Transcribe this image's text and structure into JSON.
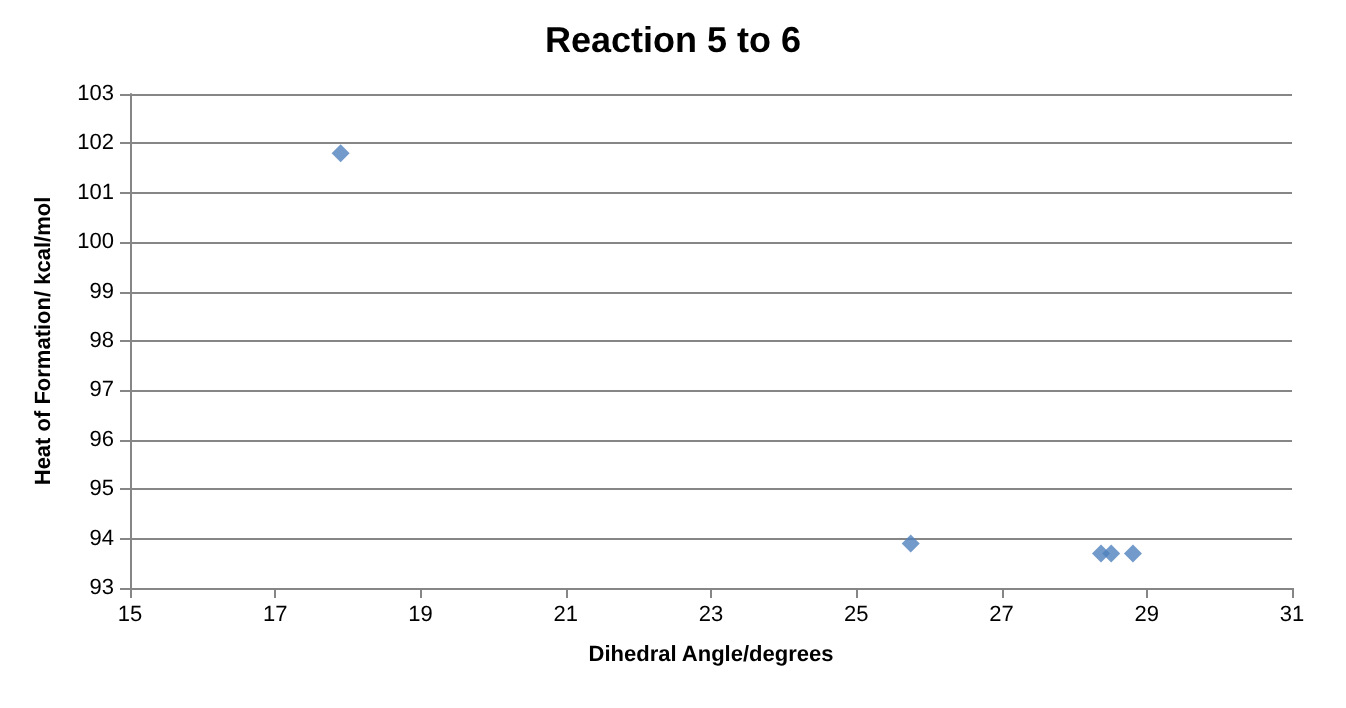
{
  "chart_data": {
    "type": "scatter",
    "title": "Reaction 5 to 6",
    "xlabel": "Dihedral Angle/degrees",
    "ylabel": "Heat of Formation/ kcal/mol",
    "x": [
      17.9,
      25.75,
      28.37,
      28.51,
      28.81
    ],
    "values": [
      101.8,
      93.9,
      93.7,
      93.7,
      93.7
    ],
    "color": "#4f81bd",
    "marker": "diamond",
    "grid": "y",
    "xlim": [
      15,
      31
    ],
    "xticks": [
      15,
      17,
      19,
      21,
      23,
      25,
      27,
      29,
      31
    ],
    "ylim": [
      93,
      103
    ],
    "yticks": [
      93,
      94,
      95,
      96,
      97,
      98,
      99,
      100,
      101,
      102,
      103
    ]
  }
}
